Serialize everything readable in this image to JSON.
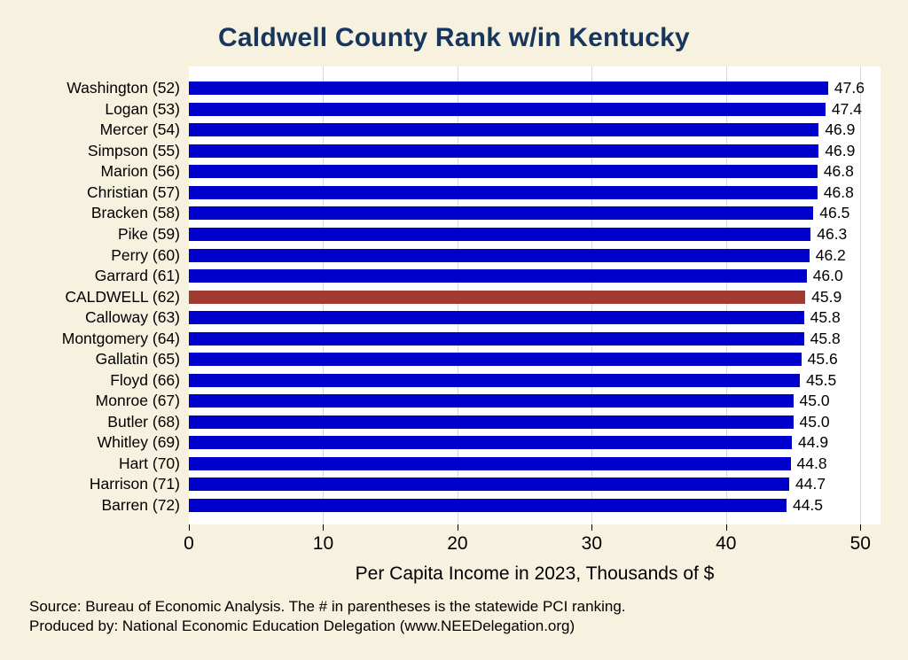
{
  "title": "Caldwell County Rank w/in Kentucky",
  "footer": {
    "line1": "Source: Bureau of Economic Analysis. The # in parentheses is the statewide PCI ranking.",
    "line2": "Produced by: National Economic Education Delegation (www.NEEDelegation.org)"
  },
  "colors": {
    "background": "#F7F1DF",
    "title": "#17365D",
    "bar": "#0000CD",
    "highlight_bar": "#A03B33",
    "grid": "#D8D8D8"
  },
  "chart_data": {
    "type": "bar",
    "orientation": "horizontal",
    "title": "Caldwell County Rank w/in Kentucky",
    "xlabel": "Per Capita Income in 2023, Thousands of $",
    "xlim": [
      0,
      51.5
    ],
    "xticks": [
      0,
      10,
      20,
      30,
      40,
      50
    ],
    "grid": true,
    "legend": "none",
    "categories": [
      "Washington (52)",
      "Logan (53)",
      "Mercer (54)",
      "Simpson (55)",
      "Marion (56)",
      "Christian (57)",
      "Bracken (58)",
      "Pike (59)",
      "Perry (60)",
      "Garrard (61)",
      "CALDWELL (62)",
      "Calloway (63)",
      "Montgomery (64)",
      "Gallatin (65)",
      "Floyd (66)",
      "Monroe (67)",
      "Butler (68)",
      "Whitley (69)",
      "Hart (70)",
      "Harrison (71)",
      "Barren (72)"
    ],
    "values": [
      47.6,
      47.4,
      46.9,
      46.9,
      46.8,
      46.8,
      46.5,
      46.3,
      46.2,
      46.0,
      45.9,
      45.8,
      45.8,
      45.6,
      45.5,
      45.0,
      45.0,
      44.9,
      44.8,
      44.7,
      44.5
    ],
    "highlight_category": "CALDWELL (62)",
    "highlight_index": 10
  }
}
